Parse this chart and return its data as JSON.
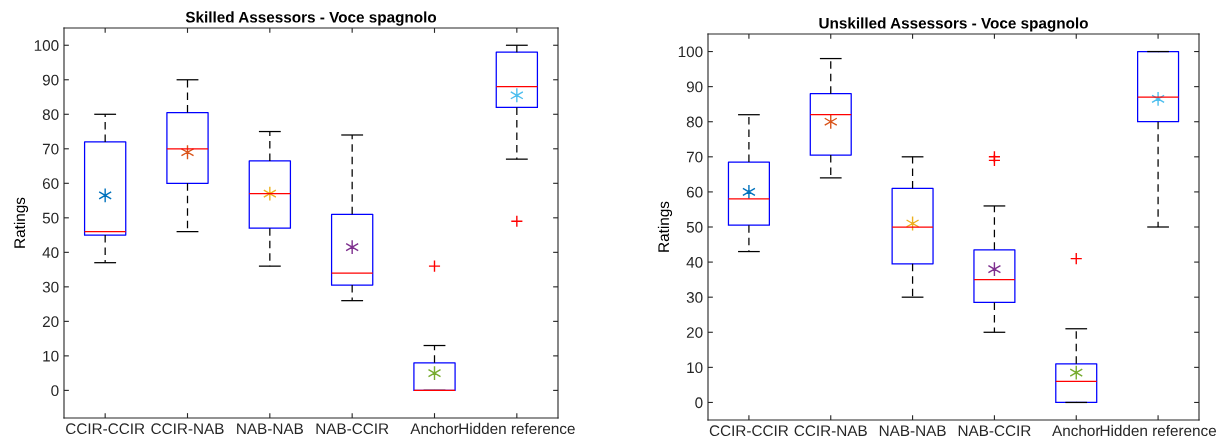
{
  "chart_data": [
    {
      "type": "box",
      "title": "Skilled Assessors - Voce spagnolo",
      "ylabel": "Ratings",
      "categories": [
        "CCIR-CCIR",
        "CCIR-NAB",
        "NAB-NAB",
        "NAB-CCIR",
        "Anchor",
        "Hidden reference"
      ],
      "color": "#0000ff",
      "boxes": [
        {
          "low": 37,
          "q1": 45,
          "median": 46,
          "q3": 72,
          "high": 80
        },
        {
          "low": 46,
          "q1": 60,
          "median": 70,
          "q3": 80.5,
          "high": 90
        },
        {
          "low": 36,
          "q1": 47,
          "median": 57,
          "q3": 66.5,
          "high": 75
        },
        {
          "low": 26,
          "q1": 30.5,
          "median": 34,
          "q3": 51,
          "high": 74
        },
        {
          "low": 0,
          "q1": 0,
          "median": 0,
          "q3": 8,
          "high": 13,
          "outliers": [
            36
          ]
        },
        {
          "low": 67,
          "q1": 82,
          "median": 88,
          "q3": 98,
          "high": 100,
          "outliers": [
            49
          ]
        }
      ],
      "series": [
        {
          "type": "scatter",
          "marker": "cross",
          "x": [
            "CCIR-CCIR",
            "CCIR-NAB",
            "NAB-NAB",
            "NAB-CCIR",
            "Anchor",
            "Hidden reference"
          ],
          "values": [
            56.5,
            69,
            57,
            41.5,
            5,
            85.5
          ],
          "colors": [
            "#0072bd",
            "#d95319",
            "#edb120",
            "#7e2f8e",
            "#77ac30",
            "#4dbeee"
          ]
        }
      ],
      "ylim": [
        -8,
        105
      ],
      "yticks": [
        0,
        10,
        20,
        30,
        40,
        50,
        60,
        70,
        80,
        90,
        100
      ],
      "grid": false
    },
    {
      "type": "box",
      "title": "Unskilled Assessors - Voce spagnolo",
      "ylabel": "Ratings",
      "categories": [
        "CCIR-CCIR",
        "CCIR-NAB",
        "NAB-NAB",
        "NAB-CCIR",
        "Anchor",
        "Hidden reference"
      ],
      "color": "#0000ff",
      "boxes": [
        {
          "low": 43,
          "q1": 50.5,
          "median": 58,
          "q3": 68.5,
          "high": 82
        },
        {
          "low": 64,
          "q1": 70.5,
          "median": 82,
          "q3": 88,
          "high": 98
        },
        {
          "low": 30,
          "q1": 39.5,
          "median": 50,
          "q3": 61,
          "high": 70
        },
        {
          "low": 20,
          "q1": 28.5,
          "median": 35,
          "q3": 43.5,
          "high": 56,
          "outliers": [
            69,
            70
          ]
        },
        {
          "low": 0,
          "q1": 0,
          "median": 6,
          "q3": 11,
          "high": 21,
          "outliers": [
            41
          ]
        },
        {
          "low": 50,
          "q1": 80,
          "median": 87,
          "q3": 100,
          "high": 100
        }
      ],
      "series": [
        {
          "type": "scatter",
          "marker": "cross",
          "x": [
            "CCIR-CCIR",
            "CCIR-NAB",
            "NAB-NAB",
            "NAB-CCIR",
            "Anchor",
            "Hidden reference"
          ],
          "values": [
            60,
            80,
            51,
            38,
            8.5,
            86.5
          ],
          "colors": [
            "#0072bd",
            "#d95319",
            "#edb120",
            "#7e2f8e",
            "#77ac30",
            "#4dbeee"
          ]
        }
      ],
      "ylim": [
        -5,
        105
      ],
      "yticks": [
        0,
        10,
        20,
        30,
        40,
        50,
        60,
        70,
        80,
        90,
        100
      ],
      "grid": false
    }
  ]
}
